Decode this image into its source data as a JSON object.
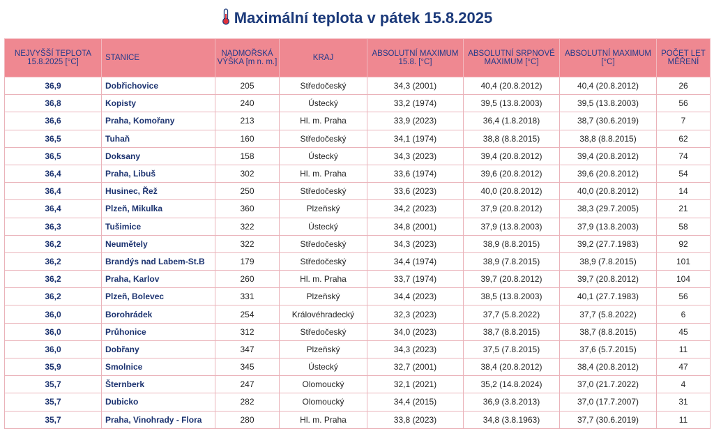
{
  "title": "Maximální teplota v pátek 15.8.2025",
  "headers": [
    "NEJVYŠŠÍ TEPLOTA 15.8.2025 [°C]",
    "STANICE",
    "NADMOŘSKÁ VÝŠKA [m n. m.]",
    "KRAJ",
    "ABSOLUTNÍ MAXIMUM 15.8. [°C]",
    "ABSOLUTNÍ SRPNOVÉ MAXIMUM [°C]",
    "ABSOLUTNÍ MAXIMUM [°C]",
    "POČET LET MĚŘENÍ"
  ],
  "rows": [
    [
      "36,9",
      "Dobřichovice",
      "205",
      "Středočeský",
      "34,3 (2001)",
      "40,4 (20.8.2012)",
      "40,4 (20.8.2012)",
      "26"
    ],
    [
      "36,8",
      "Kopisty",
      "240",
      "Ústecký",
      "33,2 (1974)",
      "39,5 (13.8.2003)",
      "39,5 (13.8.2003)",
      "56"
    ],
    [
      "36,6",
      "Praha, Komořany",
      "213",
      "Hl. m. Praha",
      "33,9 (2023)",
      "36,4 (1.8.2018)",
      "38,7 (30.6.2019)",
      "7"
    ],
    [
      "36,5",
      "Tuhaň",
      "160",
      "Středočeský",
      "34,1 (1974)",
      "38,8 (8.8.2015)",
      "38,8 (8.8.2015)",
      "62"
    ],
    [
      "36,5",
      "Doksany",
      "158",
      "Ústecký",
      "34,3 (2023)",
      "39,4 (20.8.2012)",
      "39,4 (20.8.2012)",
      "74"
    ],
    [
      "36,4",
      "Praha, Libuš",
      "302",
      "Hl. m. Praha",
      "33,6 (1974)",
      "39,6 (20.8.2012)",
      "39,6 (20.8.2012)",
      "54"
    ],
    [
      "36,4",
      "Husinec, Řež",
      "250",
      "Středočeský",
      "33,6 (2023)",
      "40,0 (20.8.2012)",
      "40,0 (20.8.2012)",
      "14"
    ],
    [
      "36,4",
      "Plzeň, Mikulka",
      "360",
      "Plzeňský",
      "34,2 (2023)",
      "37,9 (20.8.2012)",
      "38,3 (29.7.2005)",
      "21"
    ],
    [
      "36,3",
      "Tušimice",
      "322",
      "Ústecký",
      "34,8 (2001)",
      "37,9 (13.8.2003)",
      "37,9 (13.8.2003)",
      "58"
    ],
    [
      "36,2",
      "Neumětely",
      "322",
      "Středočeský",
      "34,3 (2023)",
      "38,9 (8.8.2015)",
      "39,2 (27.7.1983)",
      "92"
    ],
    [
      "36,2",
      "Brandýs nad Labem-St.B",
      "179",
      "Středočeský",
      "34,4 (1974)",
      "38,9 (7.8.2015)",
      "38,9 (7.8.2015)",
      "101"
    ],
    [
      "36,2",
      "Praha, Karlov",
      "260",
      "Hl. m. Praha",
      "33,7 (1974)",
      "39,7 (20.8.2012)",
      "39,7 (20.8.2012)",
      "104"
    ],
    [
      "36,2",
      "Plzeň, Bolevec",
      "331",
      "Plzeňský",
      "34,4 (2023)",
      "38,5 (13.8.2003)",
      "40,1 (27.7.1983)",
      "56"
    ],
    [
      "36,0",
      "Borohrádek",
      "254",
      "Královéhradecký",
      "32,3 (2023)",
      "37,7 (5.8.2022)",
      "37,7 (5.8.2022)",
      "6"
    ],
    [
      "36,0",
      "Průhonice",
      "312",
      "Středočeský",
      "34,0 (2023)",
      "38,7 (8.8.2015)",
      "38,7 (8.8.2015)",
      "45"
    ],
    [
      "36,0",
      "Dobřany",
      "347",
      "Plzeňský",
      "34,3 (2023)",
      "37,5 (7.8.2015)",
      "37,6 (5.7.2015)",
      "11"
    ],
    [
      "35,9",
      "Smolnice",
      "345",
      "Ústecký",
      "32,7 (2001)",
      "38,4 (20.8.2012)",
      "38,4 (20.8.2012)",
      "47"
    ],
    [
      "35,7",
      "Šternberk",
      "247",
      "Olomoucký",
      "32,1 (2021)",
      "35,2 (14.8.2024)",
      "37,0 (21.7.2022)",
      "4"
    ],
    [
      "35,7",
      "Dubicko",
      "282",
      "Olomoucký",
      "34,4 (2015)",
      "36,9 (3.8.2013)",
      "37,0 (17.7.2007)",
      "31"
    ],
    [
      "35,7",
      "Praha, Vinohrady - Flora",
      "280",
      "Hl. m. Praha",
      "33,8 (2023)",
      "34,8 (3.8.1963)",
      "37,7 (30.6.2019)",
      "11"
    ]
  ]
}
